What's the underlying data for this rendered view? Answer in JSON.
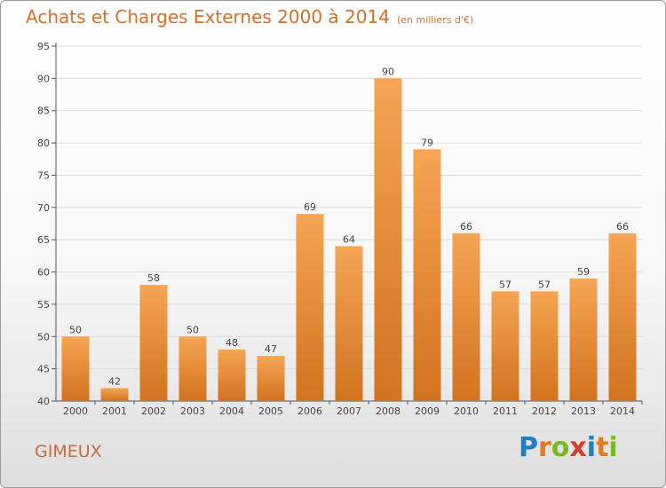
{
  "header": {
    "title": "Achats et Charges Externes 2000 à 2014",
    "unit": "(en milliers d'€)"
  },
  "footer": {
    "city": "GIMEUX",
    "logo": "Proxiti",
    "logo_letters": [
      {
        "ch": "P",
        "color": "#1e7fc4"
      },
      {
        "ch": "r",
        "color": "#e07b20"
      },
      {
        "ch": "o",
        "color": "#7ab827"
      },
      {
        "ch": "x",
        "color": "#d63a2a"
      },
      {
        "ch": "i",
        "color": "#1e7fc4"
      },
      {
        "ch": "t",
        "color": "#e07b20"
      },
      {
        "ch": "i",
        "color": "#7ab827"
      }
    ]
  },
  "colors": {
    "title": "#d2702a",
    "bar_light": "#f5a553",
    "bar_dark": "#d2731f",
    "axis": "#555555",
    "grid": "#dcdcdc",
    "label": "#444444"
  },
  "chart_data": {
    "type": "bar",
    "title": "Achats et Charges Externes 2000 à 2014",
    "xlabel": "",
    "ylabel": "",
    "categories": [
      "2000",
      "2001",
      "2002",
      "2003",
      "2004",
      "2005",
      "2006",
      "2007",
      "2008",
      "2009",
      "2010",
      "2011",
      "2012",
      "2013",
      "2014"
    ],
    "values": [
      50,
      42,
      58,
      50,
      48,
      47,
      69,
      64,
      90,
      79,
      66,
      57,
      57,
      59,
      66
    ],
    "ylim": [
      40,
      95
    ],
    "yticks": [
      40,
      45,
      50,
      55,
      60,
      65,
      70,
      75,
      80,
      85,
      90,
      95
    ],
    "grid": true,
    "legend": "none"
  }
}
